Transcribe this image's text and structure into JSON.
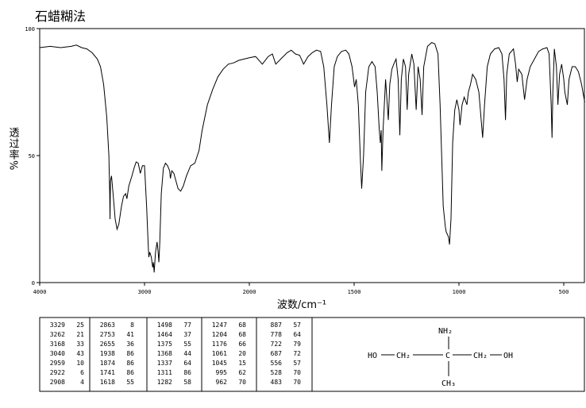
{
  "chart_data": {
    "type": "line",
    "title": "石蜡糊法",
    "xlabel": "波数/cm⁻¹",
    "ylabel": "透过率%",
    "xlim": [
      4000,
      400
    ],
    "xticks": [
      4000,
      3000,
      2000,
      1500,
      1000,
      500
    ],
    "ylim": [
      0,
      100
    ],
    "yticks": [
      0,
      50,
      100
    ],
    "color": "#000000",
    "x": [
      4000,
      3900,
      3800,
      3700,
      3650,
      3600,
      3550,
      3500,
      3450,
      3420,
      3390,
      3360,
      3340,
      3332,
      3329,
      3325,
      3315,
      3300,
      3280,
      3262,
      3245,
      3220,
      3200,
      3180,
      3168,
      3150,
      3120,
      3100,
      3080,
      3060,
      3040,
      3020,
      3000,
      2980,
      2965,
      2959,
      2950,
      2935,
      2922,
      2915,
      2908,
      2895,
      2880,
      2870,
      2863,
      2855,
      2840,
      2820,
      2800,
      2780,
      2760,
      2753,
      2740,
      2720,
      2700,
      2680,
      2655,
      2630,
      2600,
      2560,
      2520,
      2480,
      2450,
      2400,
      2350,
      2300,
      2250,
      2200,
      2150,
      2100,
      2050,
      2000,
      1970,
      1938,
      1910,
      1890,
      1874,
      1850,
      1820,
      1800,
      1780,
      1760,
      1741,
      1720,
      1700,
      1680,
      1660,
      1645,
      1630,
      1618,
      1608,
      1595,
      1580,
      1560,
      1540,
      1525,
      1510,
      1498,
      1490,
      1480,
      1470,
      1464,
      1455,
      1445,
      1430,
      1415,
      1400,
      1390,
      1380,
      1375,
      1371,
      1368,
      1362,
      1350,
      1337,
      1330,
      1320,
      1311,
      1300,
      1290,
      1282,
      1275,
      1265,
      1255,
      1247,
      1240,
      1225,
      1215,
      1204,
      1195,
      1185,
      1176,
      1168,
      1150,
      1130,
      1115,
      1100,
      1090,
      1075,
      1065,
      1061,
      1050,
      1045,
      1038,
      1030,
      1020,
      1010,
      1000,
      995,
      985,
      975,
      962,
      955,
      945,
      935,
      920,
      905,
      895,
      887,
      878,
      865,
      850,
      830,
      810,
      795,
      785,
      778,
      772,
      760,
      740,
      730,
      722,
      715,
      700,
      687,
      675,
      660,
      640,
      620,
      600,
      580,
      570,
      560,
      556,
      552,
      545,
      535,
      528,
      520,
      510,
      500,
      495,
      483,
      475,
      460,
      445,
      430,
      415,
      400
    ],
    "values": [
      92.5,
      93,
      92.5,
      93,
      93.5,
      92.5,
      92,
      90.5,
      88,
      85,
      78,
      65,
      50,
      35,
      25,
      40,
      42,
      35,
      25,
      21,
      23,
      30,
      34,
      35,
      33,
      38,
      42,
      45,
      47.5,
      47,
      43,
      46,
      46,
      30,
      15,
      10,
      12,
      10,
      6,
      8,
      4,
      12,
      16,
      12,
      8,
      15,
      35,
      45,
      47,
      46,
      44,
      41,
      44,
      43,
      40,
      37,
      36,
      38,
      42,
      46,
      47,
      52,
      60,
      70,
      76,
      81,
      84,
      86,
      86.5,
      87.5,
      88,
      88.5,
      89,
      86,
      89,
      90,
      86,
      88,
      90.5,
      91.5,
      90,
      89.5,
      86,
      89,
      90.5,
      91.5,
      91,
      85,
      70,
      55,
      70,
      85,
      89,
      91,
      91.5,
      90,
      85,
      77,
      80,
      70,
      48,
      37,
      50,
      75,
      85,
      87,
      85,
      75,
      60,
      55,
      60,
      44,
      60,
      80,
      64,
      78,
      84,
      86,
      88,
      80,
      58,
      80,
      88,
      85,
      68,
      82,
      90,
      86,
      68,
      85,
      80,
      66,
      85,
      93,
      94.5,
      94,
      90,
      70,
      30,
      22,
      20,
      18,
      15,
      25,
      55,
      68,
      72,
      68,
      62,
      70,
      73,
      70,
      75,
      78,
      82,
      80,
      75,
      65,
      57,
      70,
      85,
      90,
      92,
      92.5,
      90,
      80,
      64,
      82,
      90,
      92,
      86,
      79,
      84,
      82,
      72,
      80,
      85,
      88,
      91,
      92,
      92.5,
      90,
      70,
      57,
      75,
      92,
      85,
      70,
      82,
      86,
      80,
      75,
      70,
      80,
      85,
      85,
      83,
      78,
      71
    ]
  },
  "peak_table": {
    "columns": [
      [
        [
          3329,
          25
        ],
        [
          3262,
          21
        ],
        [
          3168,
          33
        ],
        [
          3040,
          43
        ],
        [
          2959,
          10
        ],
        [
          2922,
          6
        ],
        [
          2908,
          4
        ]
      ],
      [
        [
          2863,
          8
        ],
        [
          2753,
          41
        ],
        [
          2655,
          36
        ],
        [
          1938,
          86
        ],
        [
          1874,
          86
        ],
        [
          1741,
          86
        ],
        [
          1618,
          55
        ]
      ],
      [
        [
          1498,
          77
        ],
        [
          1464,
          37
        ],
        [
          1375,
          55
        ],
        [
          1368,
          44
        ],
        [
          1337,
          64
        ],
        [
          1311,
          86
        ],
        [
          1282,
          58
        ]
      ],
      [
        [
          1247,
          68
        ],
        [
          1204,
          68
        ],
        [
          1176,
          66
        ],
        [
          1061,
          20
        ],
        [
          1045,
          15
        ],
        [
          995,
          62
        ],
        [
          962,
          70
        ]
      ],
      [
        [
          887,
          57
        ],
        [
          778,
          64
        ],
        [
          722,
          79
        ],
        [
          687,
          72
        ],
        [
          556,
          57
        ],
        [
          528,
          70
        ],
        [
          483,
          70
        ]
      ]
    ]
  },
  "structure": {
    "labels": [
      "NH₂",
      "HO",
      "CH₂",
      "C",
      "CH₂",
      "OH",
      "CH₃"
    ]
  }
}
